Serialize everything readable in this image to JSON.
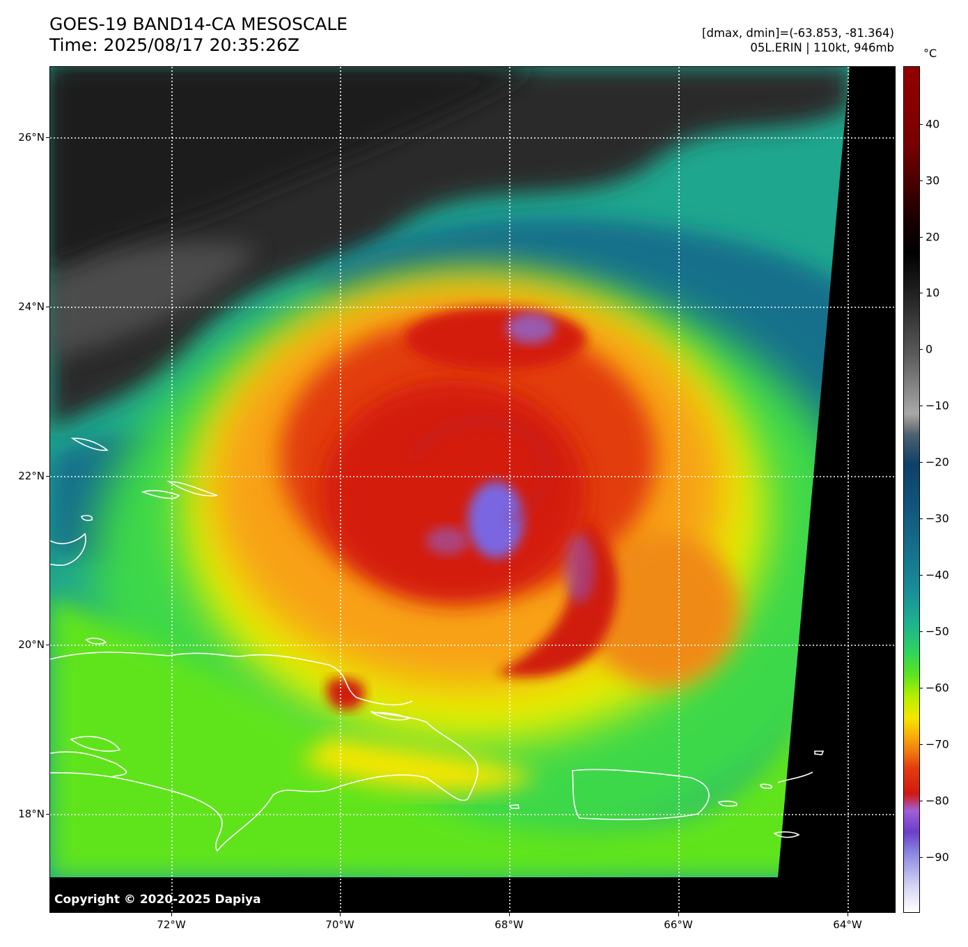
{
  "title": {
    "line1": "GOES-19 BAND14-CA MESOSCALE",
    "line2": "Time: 2025/08/17 20:35:26Z"
  },
  "info": {
    "range": "[dmax, dmin]=(-63.853, -81.364)",
    "storm": "05L.ERIN | 110kt, 946mb"
  },
  "copyright": "Copyright © 2020-2025 Dapiya",
  "lon_ticks": [
    "72°W",
    "70°W",
    "68°W",
    "66°W",
    "64°W"
  ],
  "lat_ticks": [
    "26°N",
    "24°N",
    "22°N",
    "20°N",
    "18°N"
  ],
  "colorbar": {
    "unit": "°C",
    "ticks": [
      "40",
      "30",
      "20",
      "10",
      "0",
      "−10",
      "−20",
      "−30",
      "−40",
      "−50",
      "−60",
      "−70",
      "−80",
      "−90"
    ],
    "range": [
      -100,
      50
    ]
  },
  "colors": {
    "coldest_core": "#7a66e0",
    "very_cold": "#d41c10",
    "cold": "#f08a12",
    "cool": "#f4e600",
    "mid": "#5ee41e",
    "warm": "#197e96",
    "clear": "#2a2a2a",
    "coastline": "#ffffff",
    "grid": "#ffffff"
  }
}
